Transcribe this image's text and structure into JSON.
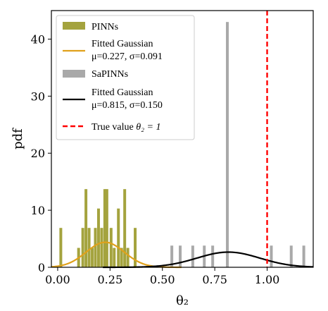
{
  "chart_data": {
    "type": "histogram",
    "xlabel": "θ₂",
    "ylabel": "pdf",
    "xlim": [
      -0.03,
      1.22
    ],
    "ylim": [
      0,
      45
    ],
    "xticks": [
      "0.00",
      "0.25",
      "0.50",
      "0.75",
      "1.00"
    ],
    "xtick_values": [
      0,
      0.25,
      0.5,
      0.75,
      1.0
    ],
    "yticks": [
      "0",
      "10",
      "20",
      "30",
      "40"
    ],
    "ytick_values": [
      0,
      10,
      20,
      30,
      40
    ],
    "grid": false,
    "legend_position": "top-left",
    "series": [
      {
        "name": "PINNs",
        "kind": "histogram",
        "color": "#a4a33e",
        "bins": [
          {
            "x": 0.015,
            "h": 6.9
          },
          {
            "x": 0.1,
            "h": 3.4
          },
          {
            "x": 0.12,
            "h": 6.9
          },
          {
            "x": 0.135,
            "h": 13.7
          },
          {
            "x": 0.15,
            "h": 6.9
          },
          {
            "x": 0.165,
            "h": 3.4
          },
          {
            "x": 0.18,
            "h": 6.9
          },
          {
            "x": 0.195,
            "h": 10.3
          },
          {
            "x": 0.21,
            "h": 6.9
          },
          {
            "x": 0.225,
            "h": 13.7
          },
          {
            "x": 0.235,
            "h": 13.7
          },
          {
            "x": 0.255,
            "h": 6.9
          },
          {
            "x": 0.27,
            "h": 3.4
          },
          {
            "x": 0.29,
            "h": 10.3
          },
          {
            "x": 0.305,
            "h": 3.4
          },
          {
            "x": 0.32,
            "h": 13.7
          },
          {
            "x": 0.335,
            "h": 3.4
          },
          {
            "x": 0.37,
            "h": 6.9
          }
        ]
      },
      {
        "name": "Fitted Gaussian\nμ=0.227, σ=0.091",
        "kind": "gaussian",
        "color": "#e0a11b",
        "mu": 0.227,
        "sigma": 0.091
      },
      {
        "name": "SaPINNs",
        "kind": "histogram",
        "color": "#a9a9a9",
        "bins": [
          {
            "x": 0.545,
            "h": 3.8
          },
          {
            "x": 0.585,
            "h": 3.8
          },
          {
            "x": 0.645,
            "h": 3.8
          },
          {
            "x": 0.7,
            "h": 3.8
          },
          {
            "x": 0.74,
            "h": 3.8
          },
          {
            "x": 0.81,
            "h": 43.0
          },
          {
            "x": 1.02,
            "h": 3.8
          },
          {
            "x": 1.115,
            "h": 3.8
          },
          {
            "x": 1.175,
            "h": 3.8
          }
        ]
      },
      {
        "name": "Fitted Gaussian\nμ=0.815, σ=0.150",
        "kind": "gaussian",
        "color": "#000000",
        "mu": 0.815,
        "sigma": 0.15
      },
      {
        "name": "True value θ₂ = 1",
        "kind": "vline",
        "color": "#ff0000",
        "x": 1.0
      }
    ]
  },
  "legend": {
    "pinns": "PINNs",
    "fit1_line1": "Fitted Gaussian",
    "fit1_line2": "μ=0.227, σ=0.091",
    "sapinns": "SaPINNs",
    "fit2_line1": "Fitted Gaussian",
    "fit2_line2": "μ=0.815, σ=0.150",
    "true_prefix": "True value ",
    "true_math": "θ₂ = 1"
  }
}
